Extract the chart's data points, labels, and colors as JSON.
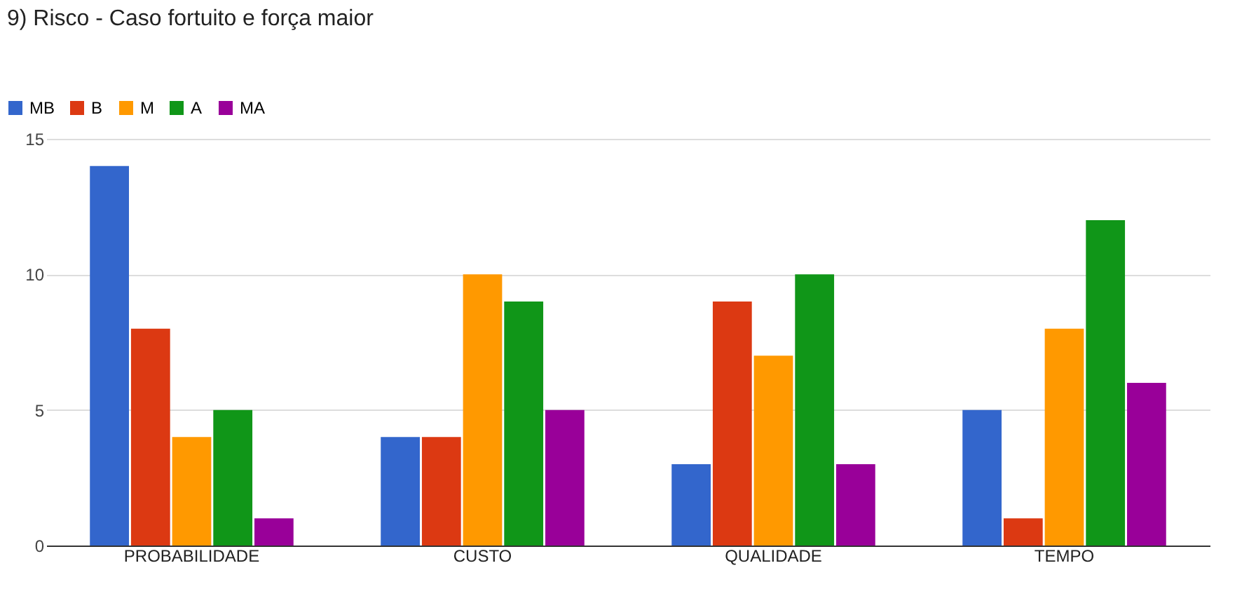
{
  "chart_data": {
    "type": "bar",
    "title": "9) Risco -  Caso fortuito e força maior",
    "categories": [
      "PROBABILIDADE",
      "CUSTO",
      "QUALIDADE",
      "TEMPO"
    ],
    "series": [
      {
        "name": "MB",
        "color": "#3366cc",
        "values": [
          14,
          4,
          3,
          5
        ]
      },
      {
        "name": "B",
        "color": "#dc3912",
        "values": [
          8,
          4,
          9,
          1
        ]
      },
      {
        "name": "M",
        "color": "#ff9900",
        "values": [
          4,
          10,
          7,
          8
        ]
      },
      {
        "name": "A",
        "color": "#109618",
        "values": [
          5,
          9,
          10,
          12
        ]
      },
      {
        "name": "MA",
        "color": "#990099",
        "values": [
          1,
          5,
          3,
          6
        ]
      }
    ],
    "ylim": [
      0,
      15
    ],
    "yticks": [
      0,
      5,
      10,
      15
    ],
    "grid": "y",
    "legend": "top left"
  }
}
